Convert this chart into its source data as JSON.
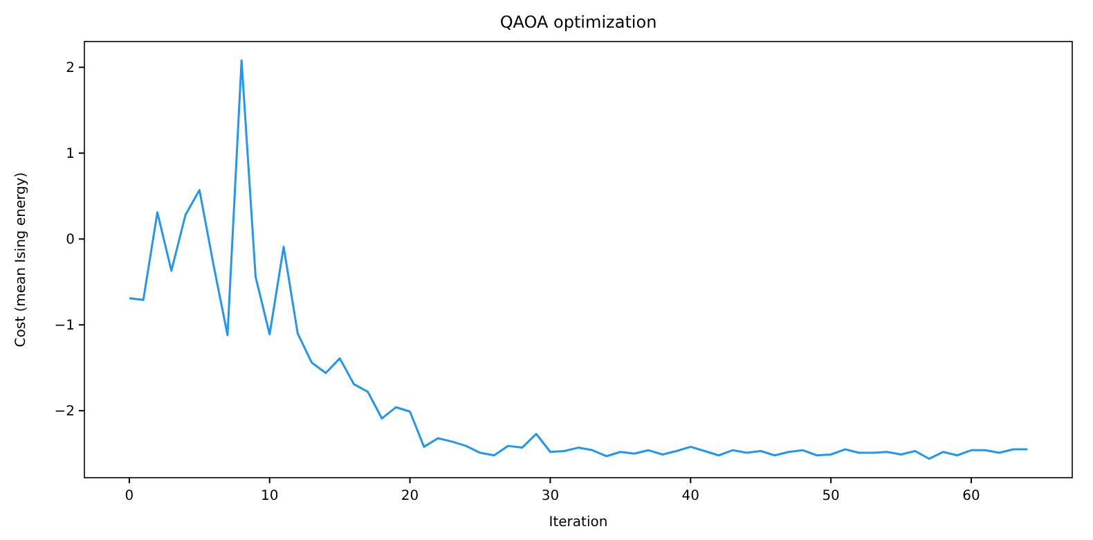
{
  "chart_data": {
    "type": "line",
    "title": "QAOA optimization",
    "xlabel": "Iteration",
    "ylabel": "Cost (mean Ising energy)",
    "x": [
      0,
      1,
      2,
      3,
      4,
      5,
      6,
      7,
      8,
      9,
      10,
      11,
      12,
      13,
      14,
      15,
      16,
      17,
      18,
      19,
      20,
      21,
      22,
      23,
      24,
      25,
      26,
      27,
      28,
      29,
      30,
      31,
      32,
      33,
      34,
      35,
      36,
      37,
      38,
      39,
      40,
      41,
      42,
      43,
      44,
      45,
      46,
      47,
      48,
      49,
      50,
      51,
      52,
      53,
      54,
      55,
      56,
      57,
      58,
      59,
      60,
      61,
      62,
      63,
      64
    ],
    "series": [
      {
        "color": "#2196f3",
        "values": [
          -0.69,
          -0.71,
          0.31,
          -0.37,
          0.28,
          0.57,
          -0.3,
          -1.12,
          2.08,
          -0.44,
          -1.11,
          -0.09,
          -1.1,
          -1.44,
          -1.56,
          -1.39,
          -1.69,
          -1.78,
          -2.09,
          -1.96,
          -2.01,
          -2.42,
          -2.32,
          -2.36,
          -2.41,
          -2.49,
          -2.52,
          -2.41,
          -2.43,
          -2.27,
          -2.48,
          -2.47,
          -2.43,
          -2.46,
          -2.53,
          -2.48,
          -2.5,
          -2.46,
          -2.51,
          -2.47,
          -2.42,
          -2.47,
          -2.52,
          -2.46,
          -2.49,
          -2.47,
          -2.52,
          -2.48,
          -2.46,
          -2.52,
          -2.51,
          -2.45,
          -2.49,
          -2.49,
          -2.48,
          -2.51,
          -2.47,
          -2.56,
          -2.48,
          -2.52,
          -2.46,
          -2.46,
          -2.49,
          -2.45,
          -2.45
        ]
      }
    ],
    "xlim": [
      -3.2,
      67.2
    ],
    "ylim": [
      -2.78,
      2.3
    ],
    "xticks": [
      0,
      10,
      20,
      30,
      40,
      50,
      60
    ],
    "yticks": [
      -2,
      -1,
      0,
      1,
      2
    ],
    "grid": false,
    "marker": "none",
    "line_style": "solid"
  }
}
